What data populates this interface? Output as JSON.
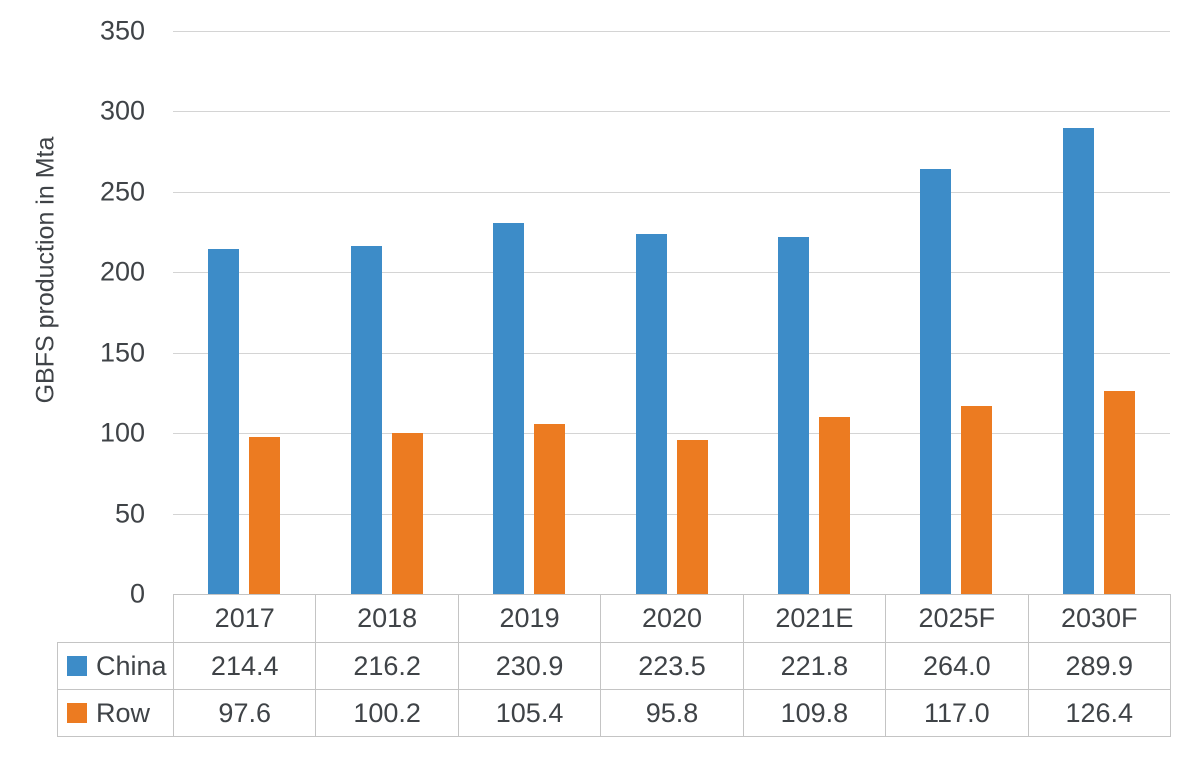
{
  "figure": {
    "background": "#ffffff",
    "text_color": "#3f4347",
    "gridline_color": "#d4d4d4",
    "table_border_color": "#c4c4c4"
  },
  "chart_data": {
    "type": "bar",
    "title": "",
    "xlabel": "",
    "ylabel": "GBFS production in Mta",
    "ylim": [
      0,
      350
    ],
    "ytick_step": 50,
    "yticks": [
      "350",
      "300",
      "250",
      "200",
      "150",
      "100",
      "50",
      "0"
    ],
    "grid": true,
    "legend_position": "data-table-left",
    "categories": [
      "2017",
      "2018",
      "2019",
      "2020",
      "2021E",
      "2025F",
      "2030F"
    ],
    "series": [
      {
        "name": "China",
        "color": "#3d8cc8",
        "values": [
          214.4,
          216.2,
          230.9,
          223.5,
          221.8,
          264.0,
          289.9
        ]
      },
      {
        "name": "Row",
        "color": "#ec7b21",
        "values": [
          97.6,
          100.2,
          105.4,
          95.8,
          109.8,
          117.0,
          126.4
        ]
      }
    ]
  },
  "data_table": {
    "header": [
      "2017",
      "2018",
      "2019",
      "2020",
      "2021E",
      "2025F",
      "2030F"
    ],
    "rows": [
      {
        "label": "China",
        "swatch_color": "#3d8cc8",
        "values": [
          "214.4",
          "216.2",
          "230.9",
          "223.5",
          "221.8",
          "264.0",
          "289.9"
        ]
      },
      {
        "label": "Row",
        "swatch_color": "#ec7b21",
        "values": [
          "97.6",
          "100.2",
          "105.4",
          "95.8",
          "109.8",
          "117.0",
          "126.4"
        ]
      }
    ]
  }
}
